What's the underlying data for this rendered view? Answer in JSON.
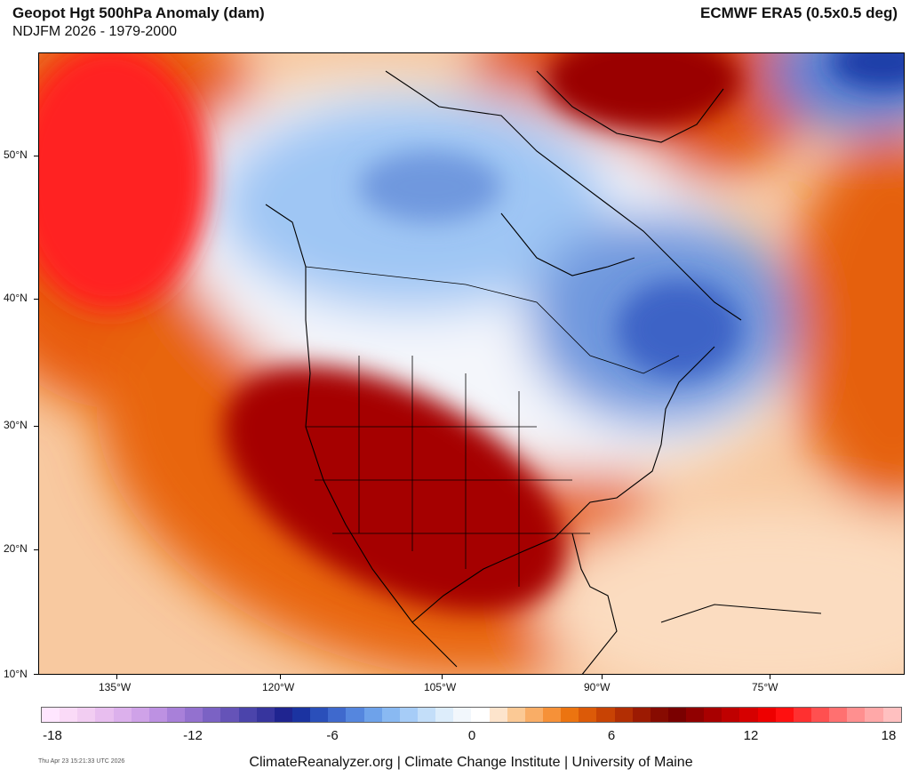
{
  "header": {
    "title": "Geopot Hgt 500hPa Anomaly (dam)",
    "subtitle": "NDJFM 2026 - 1979-2000",
    "dataset": "ECMWF ERA5 (0.5x0.5 deg)"
  },
  "map": {
    "lat_labels": [
      "50°N",
      "40°N",
      "30°N",
      "20°N",
      "10°N"
    ],
    "lon_labels": [
      "135°W",
      "120°W",
      "105°W",
      "90°W",
      "75°W"
    ],
    "anomaly_regions": [
      {
        "name": "western-us-ridge",
        "level": "strong-positive"
      },
      {
        "name": "northeast-pacific-ridge",
        "level": "strong-positive"
      },
      {
        "name": "canada-trough",
        "level": "negative"
      },
      {
        "name": "great-lakes-quebec-trough",
        "level": "negative"
      },
      {
        "name": "greenland-ridge",
        "level": "strong-positive"
      },
      {
        "name": "north-atlantic-trough",
        "level": "strong-negative"
      },
      {
        "name": "mid-atlantic-ridge",
        "level": "positive"
      }
    ]
  },
  "colorbar": {
    "min": -18,
    "max": 18,
    "step": 1,
    "tick_labels": [
      "-18",
      "-12",
      "-6",
      "0",
      "6",
      "12",
      "18"
    ],
    "colors": [
      "#ffe6ff",
      "#fadaf7",
      "#f2cdf2",
      "#e8beef",
      "#dcb0ec",
      "#cfa2e8",
      "#bd91e2",
      "#a880d9",
      "#9371cf",
      "#7b62c4",
      "#6553b8",
      "#4b44ab",
      "#37359e",
      "#1f2490",
      "#1b33a1",
      "#2a4fba",
      "#3f69cd",
      "#5586de",
      "#6ea2ea",
      "#89b9f2",
      "#a6ccf7",
      "#c3def9",
      "#ddedfb",
      "#f2f7fc",
      "#ffffff",
      "#fde4cc",
      "#fbc995",
      "#f9ad66",
      "#f69138",
      "#ec7410",
      "#dc5a08",
      "#c84304",
      "#b22e03",
      "#9c1a02",
      "#870b01",
      "#7a0000",
      "#910000",
      "#a80000",
      "#bf0000",
      "#d60000",
      "#ee0000",
      "#ff1010",
      "#ff3030",
      "#ff5050",
      "#ff7070",
      "#ff8f8f",
      "#ffa8a8",
      "#ffc0c0"
    ]
  },
  "footer": {
    "timestamp": "Thu Apr 23 15:21:33 UTC 2026",
    "credit": "ClimateReanalyzer.org | Climate Change Institute | University of Maine"
  }
}
